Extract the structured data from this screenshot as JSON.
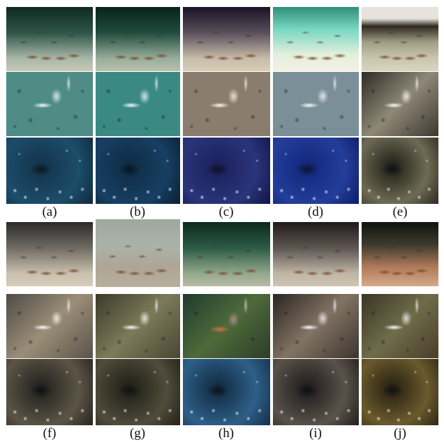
{
  "figure": {
    "columns": [
      "a",
      "b",
      "c",
      "d",
      "e",
      "f",
      "g",
      "h",
      "i",
      "j"
    ],
    "labels": {
      "a": "(a)",
      "b": "(b)",
      "c": "(c)",
      "d": "(d)",
      "e": "(e)",
      "f": "(f)",
      "g": "(g)",
      "h": "(h)",
      "i": "(i)",
      "j": "(j)"
    },
    "scenes": [
      "sandy-seabed",
      "white-fish",
      "coral-reef"
    ]
  }
}
